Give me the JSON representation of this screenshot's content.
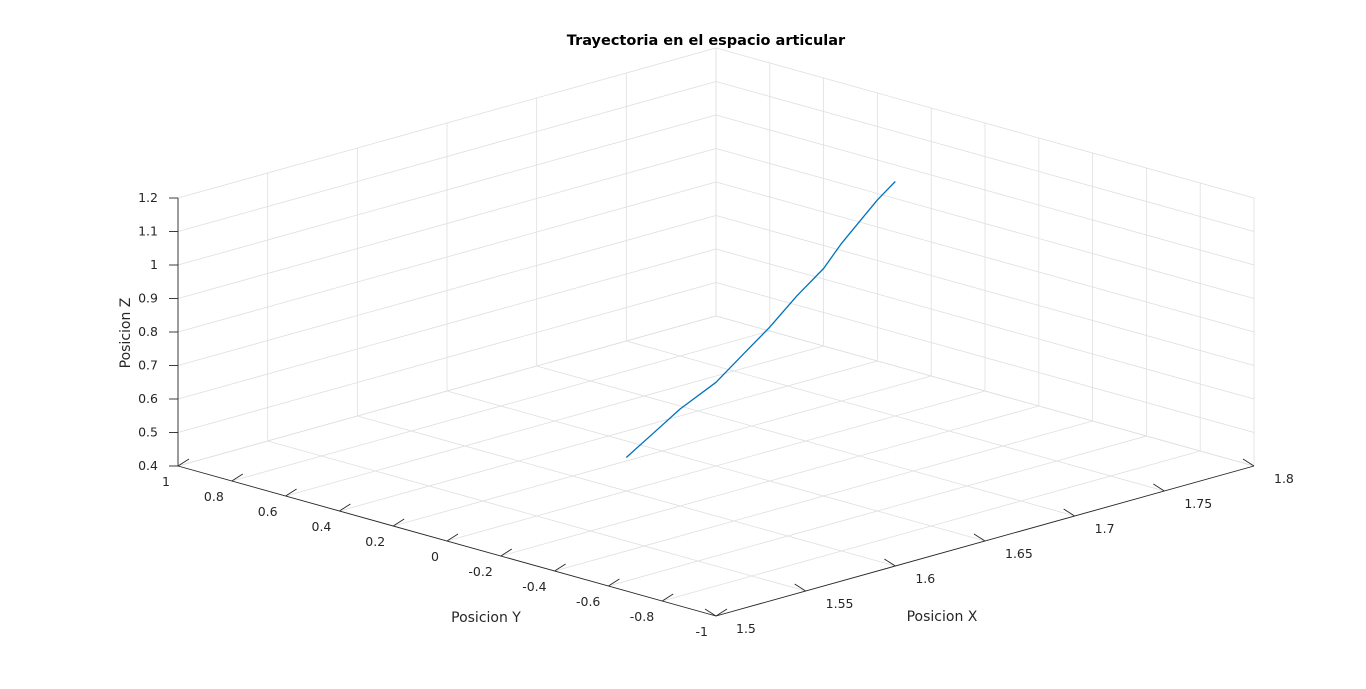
{
  "chart_data": {
    "type": "line3d",
    "title": "Trayectoria en el espacio articular",
    "xlabel": "Posicion X",
    "ylabel": "Posicion Y",
    "zlabel": "Posicion Z",
    "xlim": [
      1.5,
      1.8
    ],
    "ylim": [
      -1,
      1
    ],
    "zlim": [
      0.4,
      1.2
    ],
    "x_ticks": [
      1.5,
      1.55,
      1.6,
      1.65,
      1.7,
      1.75,
      1.8
    ],
    "x_tick_labels": [
      "1.5",
      "1.55",
      "1.6",
      "1.65",
      "1.7",
      "1.75",
      "1.8"
    ],
    "y_ticks": [
      1,
      0.8,
      0.6,
      0.4,
      0.2,
      0,
      -0.2,
      -0.4,
      -0.6,
      -0.8,
      -1
    ],
    "y_tick_labels": [
      "1",
      "0.8",
      "0.6",
      "0.4",
      "0.2",
      "0",
      "-0.2",
      "-0.4",
      "-0.6",
      "-0.8",
      "-1"
    ],
    "z_ticks": [
      0.4,
      0.5,
      0.6,
      0.7,
      0.8,
      0.9,
      1.0,
      1.1,
      1.2
    ],
    "z_tick_labels": [
      "0.4",
      "0.5",
      "0.6",
      "0.7",
      "0.8",
      "0.9",
      "1",
      "1.1",
      "1.2"
    ],
    "grid": true,
    "line_color": "#0072bd",
    "series": [
      {
        "x": [
          1.6,
          1.615,
          1.63,
          1.65,
          1.665,
          1.68,
          1.695,
          1.71,
          1.72,
          1.73,
          1.74,
          1.75
        ],
        "y": [
          0,
          0,
          0,
          0,
          0,
          0,
          0,
          0,
          0,
          0,
          0,
          0
        ],
        "z": [
          0.5,
          0.55,
          0.6,
          0.65,
          0.71,
          0.77,
          0.84,
          0.9,
          0.96,
          1.01,
          1.06,
          1.1
        ]
      }
    ]
  }
}
